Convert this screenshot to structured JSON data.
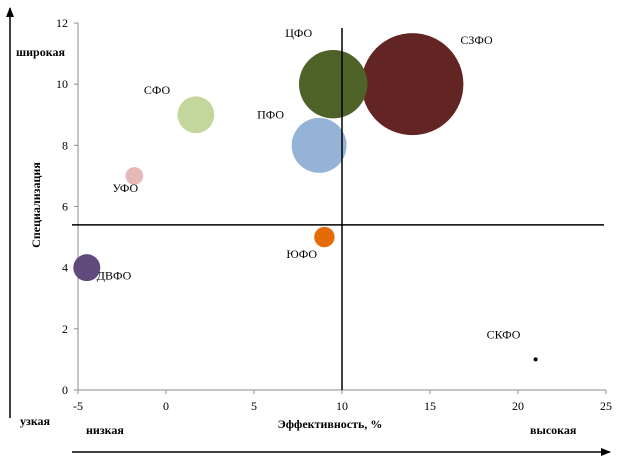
{
  "chart_data": {
    "type": "bubble",
    "xlabel": "Эффективность, %",
    "ylabel": "Специализация",
    "xlim": [
      -5,
      25
    ],
    "ylim": [
      0,
      12
    ],
    "xticks": [
      -5,
      0,
      5,
      10,
      15,
      20,
      25
    ],
    "yticks": [
      0,
      2,
      4,
      6,
      8,
      10,
      12
    ],
    "xtick_labels": [
      "-5",
      "0",
      "5",
      "10",
      "15",
      "20",
      "25"
    ],
    "ytick_labels": [
      "0",
      "2",
      "4",
      "6",
      "8",
      "10",
      "12"
    ],
    "grid": false,
    "reference_lines": {
      "x": 10,
      "y": 5.4
    },
    "annotations": {
      "y_top": "широкая",
      "y_bottom": "узкая",
      "x_left": "низкая",
      "x_right": "высокая"
    },
    "points": [
      {
        "label": "ЦФО",
        "x": 9.5,
        "y": 10,
        "size": 4.5,
        "color": "#4f6228"
      },
      {
        "label": "СЗФО",
        "x": 14,
        "y": 10,
        "size": 10,
        "color": "#632523"
      },
      {
        "label": "СФО",
        "x": 1.7,
        "y": 9,
        "size": 1.3,
        "color": "#c3d69b"
      },
      {
        "label": "ПФО",
        "x": 8.7,
        "y": 8,
        "size": 2.9,
        "color": "#95b3d7"
      },
      {
        "label": "УФО",
        "x": -1.8,
        "y": 7,
        "size": 0.3,
        "color": "#e6b9b8"
      },
      {
        "label": "ЮФО",
        "x": 9,
        "y": 5,
        "size": 0.4,
        "color": "#e36c09"
      },
      {
        "label": "ДВФО",
        "x": -4.5,
        "y": 4,
        "size": 0.7,
        "color": "#604a7b"
      },
      {
        "label": "СКФО",
        "x": 21,
        "y": 1,
        "size": 0.01,
        "color": "#000000"
      }
    ]
  }
}
